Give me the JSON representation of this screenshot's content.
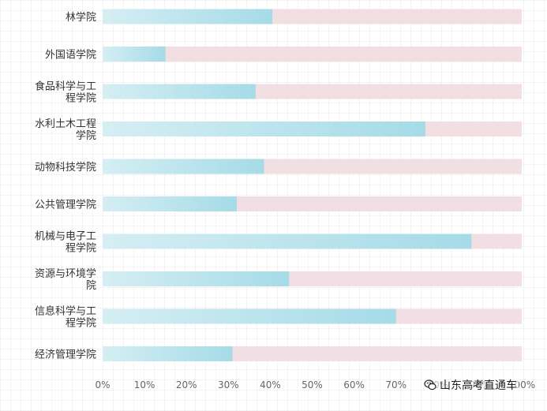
{
  "chart_data": {
    "type": "bar",
    "orientation": "horizontal",
    "categories": [
      [
        "林学院"
      ],
      [
        "外国语学院"
      ],
      [
        "食品科学与工",
        "程学院"
      ],
      [
        "水利土木工程",
        "学院"
      ],
      [
        "动物科技学院"
      ],
      [
        "公共管理学院"
      ],
      [
        "机械与电子工",
        "程学院"
      ],
      [
        "资源与环境学",
        "院"
      ],
      [
        "信息科学与工",
        "程学院"
      ],
      [
        "经济管理学院"
      ]
    ],
    "values": [
      40.5,
      15,
      36.5,
      77,
      38.5,
      32,
      88,
      44.5,
      70,
      31
    ],
    "xlim": [
      0,
      100
    ],
    "xticks": [
      "0%",
      "10%",
      "20%",
      "30%",
      "40%",
      "50%",
      "60%",
      "70%",
      "80%",
      "90%",
      "100%"
    ],
    "title": "",
    "xlabel": "",
    "ylabel": "",
    "grid": true,
    "colors": {
      "bar_start": "#d5eef3",
      "bar_end": "#a5dbe7",
      "track": "#f2dfe3"
    }
  },
  "watermark": {
    "text": "山东高考直通车",
    "icon": "wechat-icon"
  }
}
